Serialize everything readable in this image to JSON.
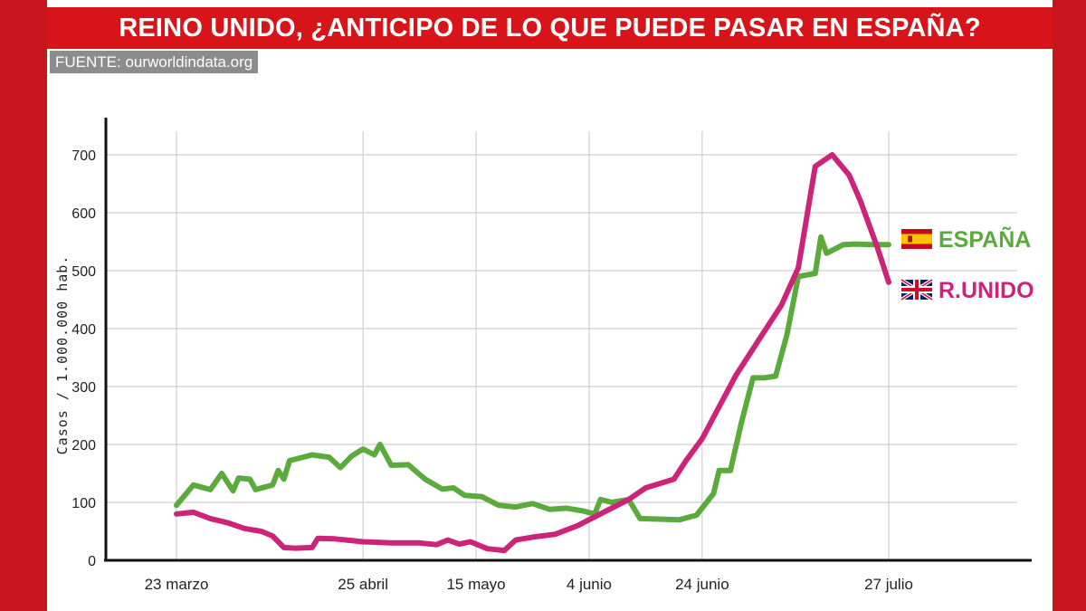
{
  "header": {
    "title": "REINO UNIDO, ¿ANTICIPO DE LO QUE PUEDE PASAR EN ESPAÑA?",
    "source": "FUENTE: ourworldindata.org"
  },
  "colors": {
    "background": "#c8161d",
    "title_bar": "#d7141a",
    "espana": "#5aaa3c",
    "reino_unido": "#cc2478",
    "grid": "#cfcfcf"
  },
  "chart_data": {
    "type": "line",
    "title": "REINO UNIDO, ¿ANTICIPO DE LO QUE PUEDE PASAR EN ESPAÑA?",
    "ylabel": "Casos / 1.000.000 hab.",
    "xlabel": "",
    "ylim": [
      0,
      700
    ],
    "yticks": [
      0,
      100,
      200,
      300,
      400,
      500,
      600,
      700
    ],
    "x_range": [
      "2021-03-23",
      "2021-07-27"
    ],
    "xticks": [
      {
        "date": "2021-03-23",
        "label": "23 marzo"
      },
      {
        "date": "2021-04-25",
        "label": "25 abril"
      },
      {
        "date": "2021-05-15",
        "label": "15 mayo"
      },
      {
        "date": "2021-06-04",
        "label": "4 junio"
      },
      {
        "date": "2021-06-24",
        "label": "24 junio"
      },
      {
        "date": "2021-07-27",
        "label": "27 julio"
      }
    ],
    "grid": true,
    "legend": "right",
    "series": [
      {
        "name": "ESPAÑA",
        "color": "#5aaa3c",
        "flag": "spain-flag",
        "points": [
          [
            "2021-03-23",
            95
          ],
          [
            "2021-03-26",
            130
          ],
          [
            "2021-03-29",
            122
          ],
          [
            "2021-03-31",
            150
          ],
          [
            "2021-04-02",
            120
          ],
          [
            "2021-04-03",
            142
          ],
          [
            "2021-04-05",
            140
          ],
          [
            "2021-04-06",
            122
          ],
          [
            "2021-04-09",
            130
          ],
          [
            "2021-04-10",
            155
          ],
          [
            "2021-04-11",
            140
          ],
          [
            "2021-04-12",
            172
          ],
          [
            "2021-04-16",
            182
          ],
          [
            "2021-04-19",
            178
          ],
          [
            "2021-04-21",
            160
          ],
          [
            "2021-04-23",
            180
          ],
          [
            "2021-04-25",
            192
          ],
          [
            "2021-04-27",
            182
          ],
          [
            "2021-04-28",
            200
          ],
          [
            "2021-04-30",
            164
          ],
          [
            "2021-05-03",
            165
          ],
          [
            "2021-05-06",
            140
          ],
          [
            "2021-05-09",
            123
          ],
          [
            "2021-05-11",
            125
          ],
          [
            "2021-05-13",
            112
          ],
          [
            "2021-05-16",
            110
          ],
          [
            "2021-05-19",
            95
          ],
          [
            "2021-05-22",
            92
          ],
          [
            "2021-05-25",
            98
          ],
          [
            "2021-05-28",
            88
          ],
          [
            "2021-05-31",
            90
          ],
          [
            "2021-06-03",
            85
          ],
          [
            "2021-06-05",
            80
          ],
          [
            "2021-06-06",
            105
          ],
          [
            "2021-06-08",
            100
          ],
          [
            "2021-06-11",
            105
          ],
          [
            "2021-06-13",
            72
          ],
          [
            "2021-06-17",
            71
          ],
          [
            "2021-06-20",
            70
          ],
          [
            "2021-06-23",
            78
          ],
          [
            "2021-06-26",
            115
          ],
          [
            "2021-06-27",
            155
          ],
          [
            "2021-06-29",
            155
          ],
          [
            "2021-07-01",
            240
          ],
          [
            "2021-07-03",
            315
          ],
          [
            "2021-07-05",
            315
          ],
          [
            "2021-07-07",
            318
          ],
          [
            "2021-07-09",
            390
          ],
          [
            "2021-07-11",
            490
          ],
          [
            "2021-07-14",
            495
          ],
          [
            "2021-07-15",
            558
          ],
          [
            "2021-07-16",
            530
          ],
          [
            "2021-07-19",
            545
          ],
          [
            "2021-07-21",
            546
          ],
          [
            "2021-07-24",
            545
          ],
          [
            "2021-07-27",
            545
          ]
        ]
      },
      {
        "name": "R.UNIDO",
        "color": "#cc2478",
        "flag": "uk-flag",
        "points": [
          [
            "2021-03-23",
            80
          ],
          [
            "2021-03-26",
            83
          ],
          [
            "2021-03-29",
            72
          ],
          [
            "2021-04-01",
            65
          ],
          [
            "2021-04-04",
            55
          ],
          [
            "2021-04-07",
            50
          ],
          [
            "2021-04-09",
            42
          ],
          [
            "2021-04-11",
            22
          ],
          [
            "2021-04-13",
            21
          ],
          [
            "2021-04-16",
            22
          ],
          [
            "2021-04-17",
            38
          ],
          [
            "2021-04-20",
            37
          ],
          [
            "2021-04-25",
            32
          ],
          [
            "2021-04-30",
            30
          ],
          [
            "2021-05-05",
            30
          ],
          [
            "2021-05-08",
            27
          ],
          [
            "2021-05-10",
            35
          ],
          [
            "2021-05-12",
            28
          ],
          [
            "2021-05-14",
            32
          ],
          [
            "2021-05-17",
            20
          ],
          [
            "2021-05-20",
            17
          ],
          [
            "2021-05-22",
            35
          ],
          [
            "2021-05-25",
            40
          ],
          [
            "2021-05-29",
            45
          ],
          [
            "2021-06-02",
            60
          ],
          [
            "2021-06-07",
            85
          ],
          [
            "2021-06-11",
            105
          ],
          [
            "2021-06-14",
            125
          ],
          [
            "2021-06-19",
            140
          ],
          [
            "2021-06-21",
            170
          ],
          [
            "2021-06-24",
            210
          ],
          [
            "2021-06-27",
            265
          ],
          [
            "2021-06-30",
            320
          ],
          [
            "2021-07-04",
            380
          ],
          [
            "2021-07-08",
            440
          ],
          [
            "2021-07-11",
            505
          ],
          [
            "2021-07-14",
            680
          ],
          [
            "2021-07-17",
            700
          ],
          [
            "2021-07-20",
            665
          ],
          [
            "2021-07-22",
            620
          ],
          [
            "2021-07-25",
            540
          ],
          [
            "2021-07-27",
            480
          ]
        ]
      }
    ]
  }
}
